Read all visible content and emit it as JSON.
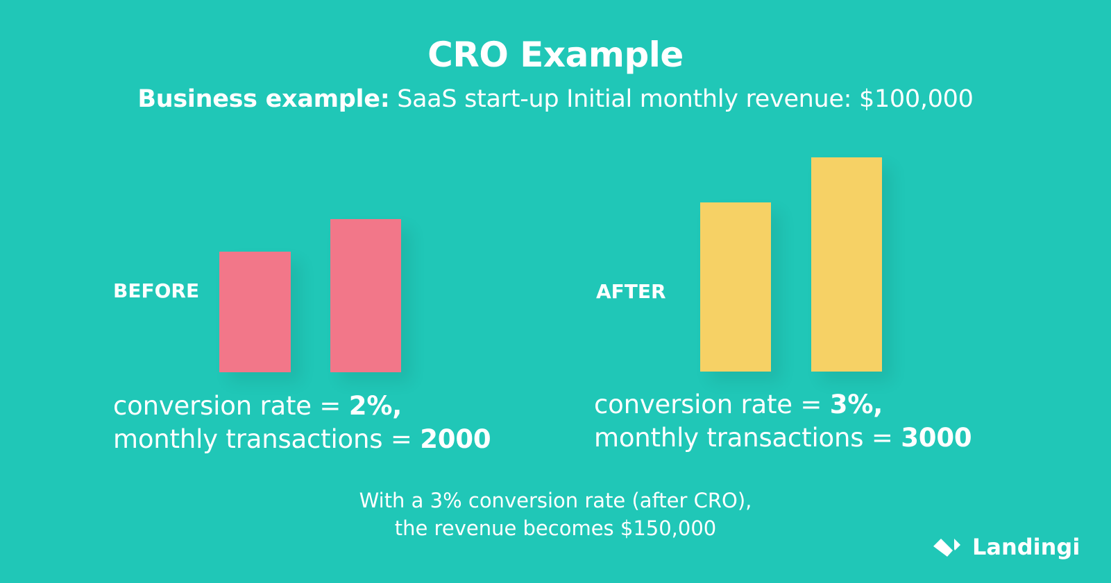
{
  "title": "CRO Example",
  "subtitle": {
    "bold": "Business example:",
    "text": " SaaS start-up Initial monthly revenue: $100,000"
  },
  "before": {
    "label": "BEFORE",
    "line1_text": "conversion rate = ",
    "line1_value": "2%,",
    "line2_text": "monthly transactions = ",
    "line2_value": "2000"
  },
  "after": {
    "label": "AFTER",
    "line1_text": "conversion rate = ",
    "line1_value": "3%,",
    "line2_text": "monthly transactions = ",
    "line2_value": "3000"
  },
  "footer": {
    "line1": "With a 3% conversion rate (after CRO),",
    "line2": "the revenue becomes $150,000"
  },
  "logo": {
    "text": "Landingi",
    "icon": "landingi-logo-icon"
  },
  "colors": {
    "background": "#20C7B7",
    "before_bars": "#F27789",
    "after_bars": "#F6D165",
    "text": "#FFFFFF"
  }
}
